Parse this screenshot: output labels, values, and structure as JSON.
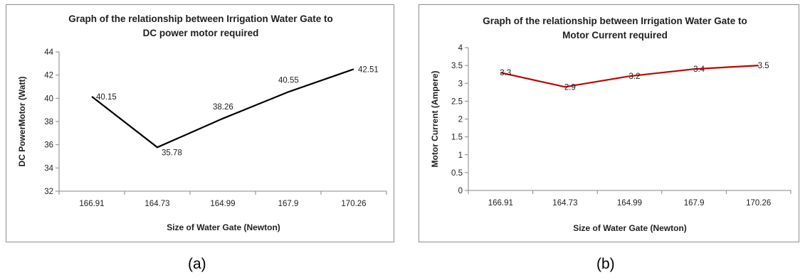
{
  "chart_data": [
    {
      "type": "line",
      "title_lines": [
        "Graph of the relationship between Irrigation Water Gate to",
        "DC power motor required"
      ],
      "xlabel": "Size of Water Gate (Newton)",
      "ylabel": "DC PowerMotor (Watt)",
      "categories": [
        "166.91",
        "164.73",
        "164.99",
        "167.9",
        "170.26"
      ],
      "series": [
        {
          "values": [
            40.15,
            35.78,
            38.26,
            40.55,
            42.51
          ],
          "color": "#000000"
        }
      ],
      "data_labels": [
        "40.15",
        "35.78",
        "38.26",
        "40.55",
        "42.51"
      ],
      "ylim": [
        32,
        44
      ],
      "yticks": [
        "32",
        "34",
        "36",
        "38",
        "40",
        "42",
        "44"
      ],
      "grid": false,
      "legend": "none"
    },
    {
      "type": "line",
      "title_lines": [
        "Graph of the relationship between Irrigation Water Gate to",
        "Motor Current required"
      ],
      "xlabel": "Size of Water Gate (Newton)",
      "ylabel": "Motor Current (Ampere)",
      "categories": [
        "166.91",
        "164.73",
        "164.99",
        "167.9",
        "170.26"
      ],
      "series": [
        {
          "values": [
            3.3,
            2.9,
            3.2,
            3.4,
            3.5
          ],
          "color": "#c00000"
        }
      ],
      "data_labels": [
        "3.3",
        "2.9",
        "3.2",
        "3.4",
        "3.5"
      ],
      "ylim": [
        0,
        4
      ],
      "yticks": [
        "0",
        "0.5",
        "1",
        "1.5",
        "2",
        "2.5",
        "3",
        "3.5",
        "4"
      ],
      "grid": false,
      "legend": "none"
    }
  ],
  "captions": [
    "(a)",
    "(b)"
  ]
}
